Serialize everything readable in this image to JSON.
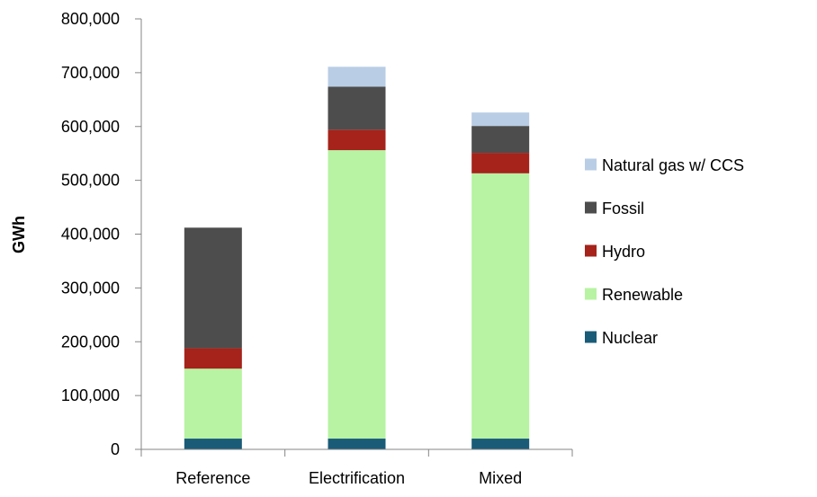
{
  "chart_data": {
    "type": "bar",
    "stacked": true,
    "title": "",
    "xlabel": "",
    "ylabel": "GWh",
    "ylim": [
      0,
      800000
    ],
    "yticks": [
      0,
      100000,
      200000,
      300000,
      400000,
      500000,
      600000,
      700000,
      800000
    ],
    "ytick_labels": [
      "0",
      "100,000",
      "200,000",
      "300,000",
      "400,000",
      "500,000",
      "600,000",
      "700,000",
      "800,000"
    ],
    "categories": [
      "Reference",
      "Electrification",
      "Mixed"
    ],
    "series": [
      {
        "name": "Nuclear",
        "color": "#1a5b78",
        "values": [
          20000,
          20000,
          20000
        ]
      },
      {
        "name": "Renewable",
        "color": "#b7f3a2",
        "values": [
          130000,
          536000,
          493000
        ]
      },
      {
        "name": "Hydro",
        "color": "#a5231b",
        "values": [
          38000,
          38000,
          38000
        ]
      },
      {
        "name": "Fossil",
        "color": "#4d4d4d",
        "values": [
          224000,
          80000,
          50000
        ]
      },
      {
        "name": "Natural gas w/ CCS",
        "color": "#b9cde5",
        "values": [
          0,
          37000,
          25000
        ]
      }
    ],
    "legend_position": "right",
    "legend_order": [
      "Natural gas w/ CCS",
      "Fossil",
      "Hydro",
      "Renewable",
      "Nuclear"
    ],
    "grid": false
  }
}
